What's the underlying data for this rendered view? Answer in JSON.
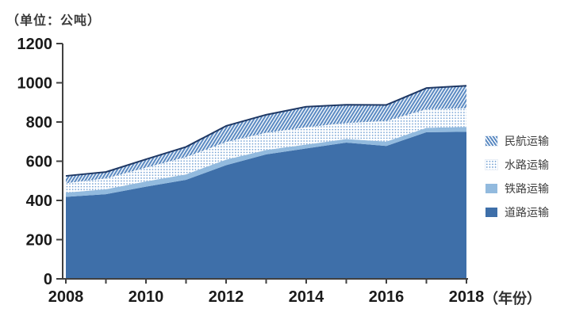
{
  "unit_label": "（单位：公吨）",
  "x_axis_label": "（年份）",
  "legend": {
    "items": [
      {
        "label": "民航运输",
        "swatch": "hatch"
      },
      {
        "label": "水路运输",
        "swatch": "dots"
      },
      {
        "label": "铁路运输",
        "swatch": "solid-light"
      },
      {
        "label": "道路运输",
        "swatch": "solid-dark"
      }
    ]
  },
  "colors": {
    "road_fill": "#3e6fa9",
    "rail_fill": "#92bade",
    "water_dot": "#6f9ed2",
    "hatch_line": "#5b8ac2",
    "pattern_bg": "#ffffff",
    "total_line": "#1f3864",
    "axis": "#404040",
    "tick_label": "#1a1a1a"
  },
  "chart_data": {
    "type": "area",
    "stacked": true,
    "title": "",
    "xlabel": "（年份）",
    "ylabel": "（单位：公吨）",
    "x": [
      2008,
      2009,
      2010,
      2011,
      2012,
      2013,
      2014,
      2015,
      2016,
      2017,
      2018
    ],
    "x_tick_labels": [
      "2008",
      "2010",
      "2012",
      "2014",
      "2016",
      "2018"
    ],
    "ylim": [
      0,
      1200
    ],
    "y_ticks": [
      0,
      200,
      400,
      600,
      800,
      1000,
      1200
    ],
    "grid": false,
    "legend_position": "right",
    "series": [
      {
        "name": "道路运输",
        "style": "solid-dark",
        "values": [
          418,
          432,
          470,
          505,
          580,
          635,
          665,
          695,
          678,
          748,
          750
        ]
      },
      {
        "name": "铁路运输",
        "style": "solid-light",
        "values": [
          22,
          25,
          27,
          28,
          28,
          22,
          20,
          18,
          22,
          22,
          25
        ]
      },
      {
        "name": "水路运输",
        "style": "dots",
        "values": [
          48,
          55,
          70,
          88,
          90,
          88,
          88,
          82,
          105,
          95,
          95
        ]
      },
      {
        "name": "民航运输",
        "style": "hatch",
        "values": [
          37,
          33,
          43,
          52,
          82,
          92,
          105,
          93,
          82,
          108,
          115
        ]
      }
    ],
    "stacked_totals": [
      525,
      545,
      610,
      673,
      780,
      837,
      878,
      888,
      887,
      973,
      985
    ]
  }
}
